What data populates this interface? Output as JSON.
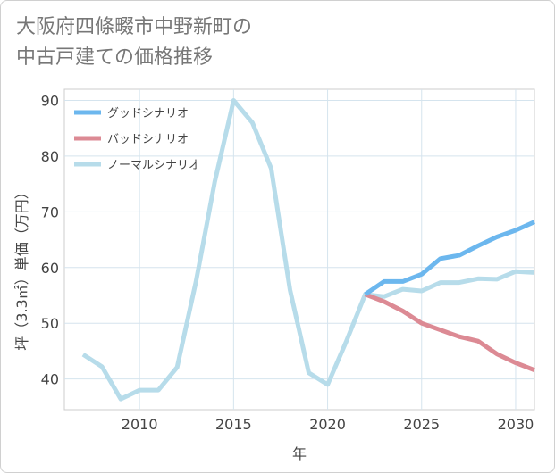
{
  "title": {
    "line1": "大阪府四條畷市中野新町の",
    "line2": "中古戸建ての価格推移"
  },
  "chart_data": {
    "type": "line",
    "title": "大阪府四條畷市中野新町の中古戸建ての価格推移",
    "xlabel": "年",
    "ylabel": "坪（3.3㎡）単価（万円）",
    "xlim": [
      2006,
      2031
    ],
    "ylim": [
      34.5,
      92
    ],
    "xticks": [
      2010,
      2015,
      2020,
      2025,
      2030
    ],
    "yticks": [
      40,
      50,
      60,
      70,
      80,
      90
    ],
    "x_tick_labels": [
      "2010",
      "2015",
      "2020",
      "2025",
      "2030"
    ],
    "y_tick_labels": [
      "40",
      "50",
      "60",
      "70",
      "80",
      "90"
    ],
    "grid": true,
    "legend_position": "top-left",
    "series": [
      {
        "name": "グッドシナリオ",
        "color": "#6cb7ee",
        "x": [
          2022,
          2023,
          2024,
          2025,
          2026,
          2027,
          2028,
          2029,
          2030,
          2031
        ],
        "values": [
          55.2,
          57.5,
          57.5,
          58.8,
          61.6,
          62.2,
          63.9,
          65.5,
          66.7,
          68.2
        ]
      },
      {
        "name": "バッドシナリオ",
        "color": "#dc8a94",
        "x": [
          2022,
          2023,
          2024,
          2025,
          2026,
          2027,
          2028,
          2029,
          2030,
          2031
        ],
        "values": [
          55.2,
          53.9,
          52.2,
          50.0,
          48.8,
          47.6,
          46.8,
          44.5,
          42.9,
          41.6
        ]
      },
      {
        "name": "ノーマルシナリオ",
        "color": "#b7dcea",
        "x": [
          2007,
          2008,
          2009,
          2010,
          2011,
          2012,
          2013,
          2014,
          2015,
          2016,
          2017,
          2018,
          2019,
          2020,
          2021,
          2022,
          2023,
          2024,
          2025,
          2026,
          2027,
          2028,
          2029,
          2030,
          2031
        ],
        "values": [
          44.4,
          42.2,
          36.4,
          38.0,
          38.0,
          42.1,
          57.5,
          75.4,
          90.0,
          86.0,
          77.8,
          56.0,
          41.1,
          39.0,
          46.8,
          55.2,
          54.8,
          56.1,
          55.8,
          57.3,
          57.3,
          58.0,
          57.9,
          59.3,
          59.1
        ]
      }
    ]
  }
}
